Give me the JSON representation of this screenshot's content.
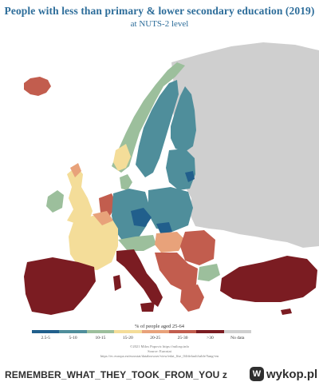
{
  "title": "People with less than primary & lower secondary education (2019)",
  "subtitle": "at NUTS-2 level",
  "legend": {
    "title": "% of people aged 25-64",
    "classes": [
      {
        "label": "2.5-5",
        "color": "#215f8c"
      },
      {
        "label": "5-10",
        "color": "#4f8e9b"
      },
      {
        "label": "10-15",
        "color": "#9cbf9c"
      },
      {
        "label": "15-20",
        "color": "#f4dd99"
      },
      {
        "label": "20-25",
        "color": "#e8a27a"
      },
      {
        "label": "25-30",
        "color": "#c25d4e"
      },
      {
        "label": ">30",
        "color": "#7b1c22"
      },
      {
        "label": "No data",
        "color": "#cfcfcf"
      }
    ]
  },
  "credits": {
    "line1": "©2021 Milos Popovic https://milosp.info",
    "line2": "Source: Eurostat",
    "line3": "https://ec.europa.eu/eurostat/databrowser/view/edat_lfse_04/default/table?lang=en"
  },
  "watermark": {
    "text": "REMEMBER_WHAT_THEY_TOOK_FROM_YOU z",
    "logo_mark": "W",
    "logo_text": "wykop.pl"
  }
}
